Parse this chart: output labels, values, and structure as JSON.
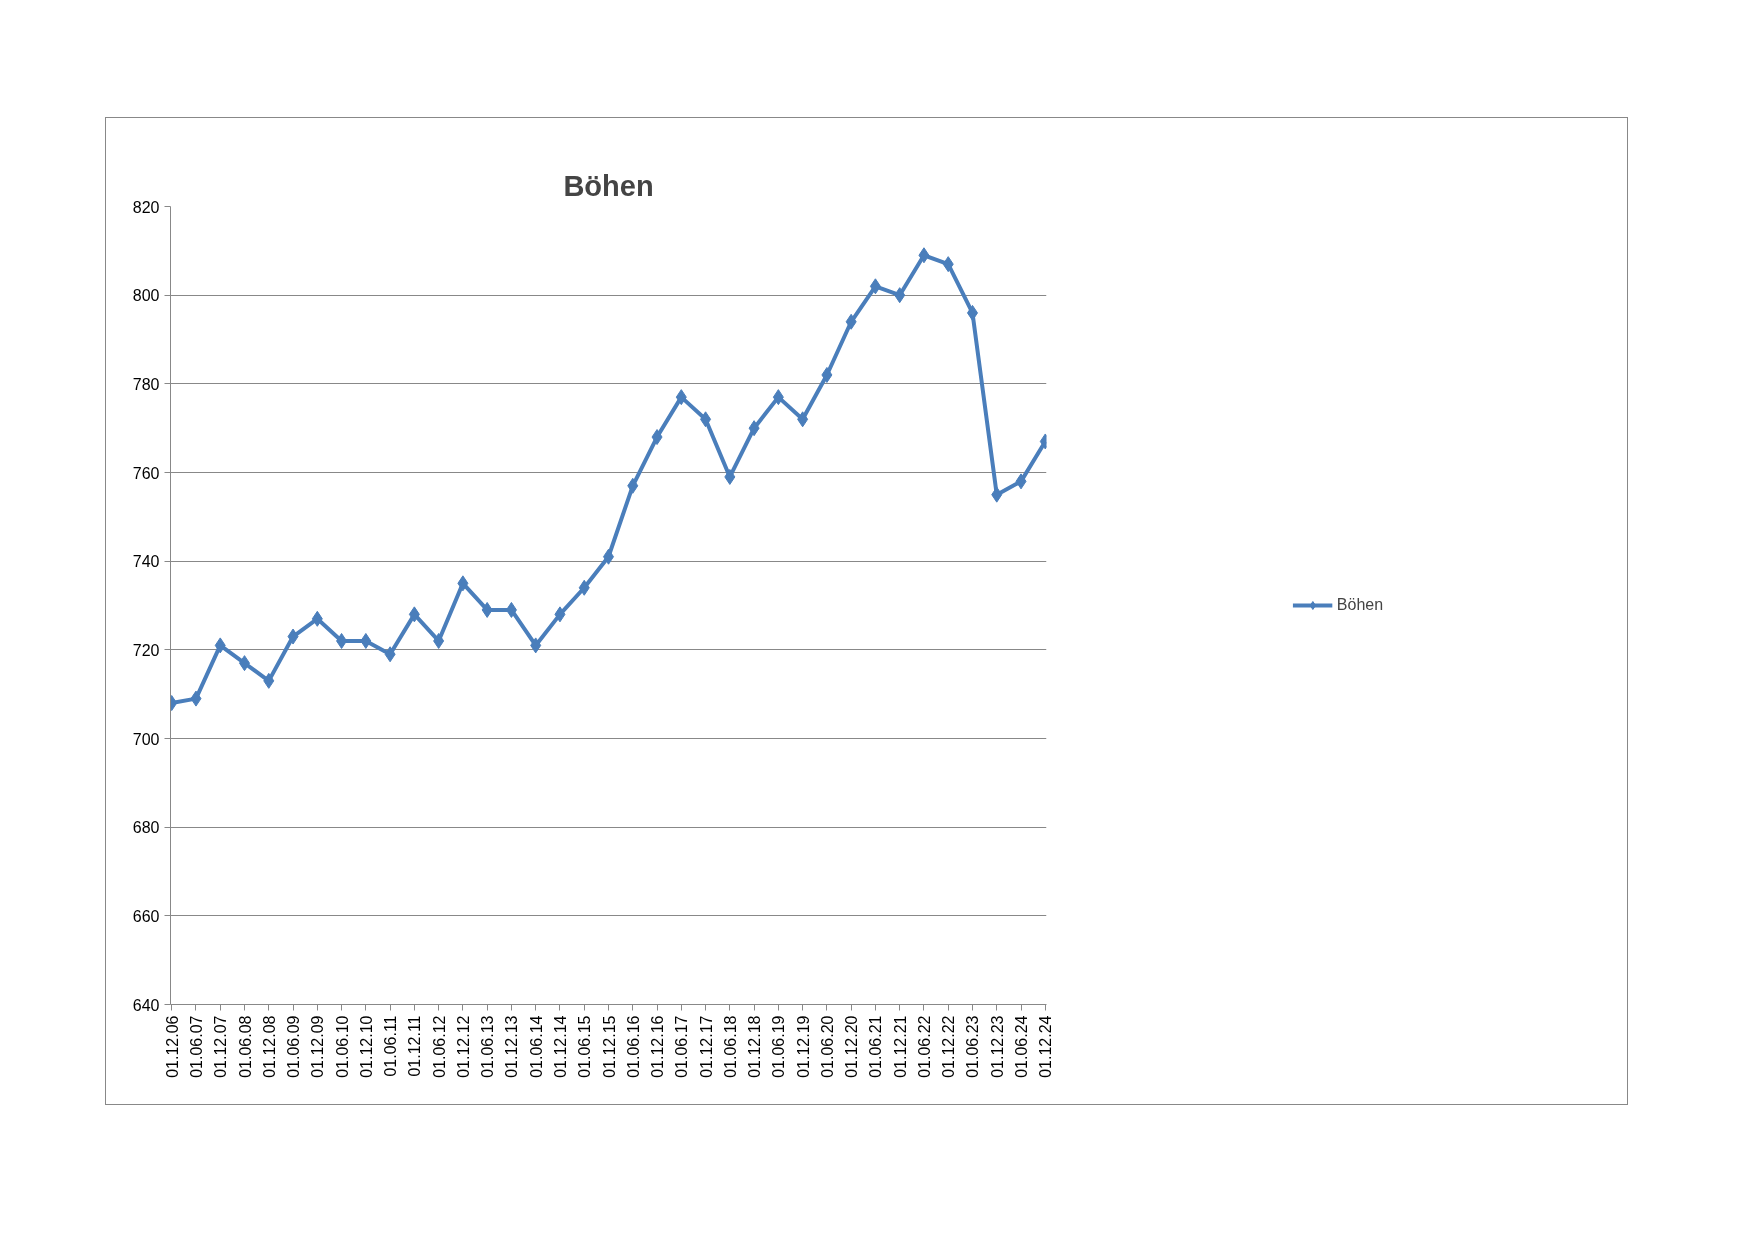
{
  "chart_data": {
    "type": "line",
    "title": "Böhen",
    "categories": [
      "01.12.06",
      "01.06.07",
      "01.12.07",
      "01.06.08",
      "01.12.08",
      "01.06.09",
      "01.12.09",
      "01.06.10",
      "01.12.10",
      "01.06.11",
      "01.12.11",
      "01.06.12",
      "01.12.12",
      "01.06.13",
      "01.12.13",
      "01.06.14",
      "01.12.14",
      "01.06.15",
      "01.12.15",
      "01.06.16",
      "01.12.16",
      "01.06.17",
      "01.12.17",
      "01.06.18",
      "01.12.18",
      "01.06.19",
      "01.12.19",
      "01.06.20",
      "01.12.20",
      "01.06.21",
      "01.12.21",
      "01.06.22",
      "01.12.22",
      "01.06.23",
      "01.12.23",
      "01.06.24",
      "01.12.24"
    ],
    "series": [
      {
        "name": "Böhen",
        "color": "#4a7ebb",
        "values": [
          708,
          709,
          721,
          717,
          713,
          723,
          727,
          722,
          722,
          719,
          728,
          722,
          735,
          729,
          729,
          721,
          728,
          734,
          741,
          757,
          768,
          777,
          772,
          759,
          770,
          777,
          772,
          782,
          794,
          802,
          800,
          809,
          807,
          796,
          755,
          758,
          767
        ]
      }
    ],
    "ylim": [
      640,
      820
    ],
    "yticks": [
      640,
      660,
      680,
      700,
      720,
      740,
      760,
      780,
      800,
      820
    ],
    "grid": "y",
    "legend": "right",
    "marker": "diamond",
    "line_style": "solid"
  }
}
